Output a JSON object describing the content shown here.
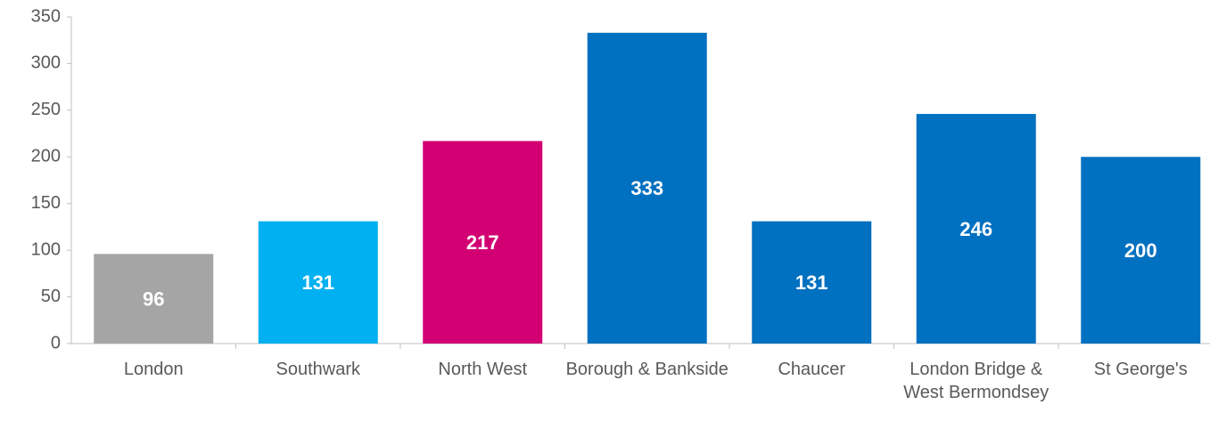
{
  "chart_data": {
    "type": "bar",
    "categories": [
      "London",
      "Southwark",
      "North West",
      "Borough & Bankside",
      "Chaucer",
      "London Bridge & West Bermondsey",
      "St George's"
    ],
    "values": [
      96,
      131,
      217,
      333,
      131,
      246,
      200
    ],
    "colors": [
      "#a5a5a5",
      "#00b0f0",
      "#d20073",
      "#0070c0",
      "#0070c0",
      "#0070c0",
      "#0070c0"
    ],
    "ylim": [
      0,
      350
    ],
    "yticks": [
      0,
      50,
      100,
      150,
      200,
      250,
      300,
      350
    ],
    "grid": false
  }
}
